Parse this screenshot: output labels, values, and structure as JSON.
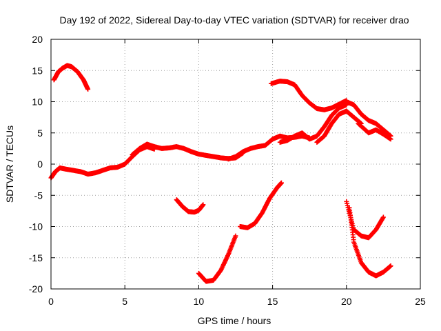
{
  "chart_data": {
    "type": "scatter",
    "title": "Day 192 of 2022, Sidereal Day-to-day VTEC variation (SDTVAR) for receiver drao",
    "xlabel": "GPS time / hours",
    "ylabel": "SDTVAR / TECUs",
    "xlim": [
      0,
      25
    ],
    "ylim": [
      -20,
      20
    ],
    "xticks": [
      0,
      5,
      10,
      15,
      20,
      25
    ],
    "yticks": [
      -20,
      -15,
      -10,
      -5,
      0,
      5,
      10,
      15,
      20
    ],
    "grid": true,
    "marker": "+",
    "color": "#ff0000",
    "series": [
      {
        "name": "arc-main-0-7",
        "x": [
          0.0,
          0.3,
          0.6,
          1.0,
          1.5,
          2.0,
          2.5,
          3.0,
          3.5,
          4.0,
          4.5,
          5.0,
          5.5,
          6.0,
          6.5,
          7.0
        ],
        "y": [
          -2.2,
          -1.2,
          -0.6,
          -0.8,
          -1.0,
          -1.2,
          -1.6,
          -1.4,
          -1.0,
          -0.6,
          -0.5,
          0.0,
          1.2,
          2.3,
          2.8,
          2.4
        ]
      },
      {
        "name": "arc-main-5-13",
        "x": [
          5.5,
          6.0,
          6.5,
          7.0,
          7.5,
          8.0,
          8.5,
          9.0,
          9.5,
          10.0,
          10.5,
          11.0,
          11.5,
          12.0,
          12.5,
          13.0
        ],
        "y": [
          1.5,
          2.5,
          3.2,
          2.8,
          2.5,
          2.6,
          2.8,
          2.5,
          2.0,
          1.6,
          1.4,
          1.2,
          1.0,
          0.9,
          1.0,
          1.8
        ]
      },
      {
        "name": "arc-main-12-17",
        "x": [
          12.0,
          12.5,
          13.0,
          13.5,
          14.0,
          14.5,
          15.0,
          15.5,
          16.0,
          16.5,
          17.0,
          17.5
        ],
        "y": [
          0.8,
          1.2,
          2.0,
          2.5,
          2.8,
          3.0,
          4.0,
          4.5,
          4.2,
          4.3,
          4.5,
          4.2
        ]
      },
      {
        "name": "arc-main-15-20",
        "x": [
          15.5,
          16.0,
          16.5,
          17.0,
          17.5,
          18.0,
          18.5,
          19.0,
          19.5,
          20.0
        ],
        "y": [
          3.5,
          3.8,
          4.5,
          5.0,
          4.0,
          4.5,
          6.0,
          7.8,
          9.0,
          9.5
        ]
      },
      {
        "name": "arc-main-18-21",
        "x": [
          18.0,
          18.5,
          19.0,
          19.5,
          20.0,
          20.5,
          21.0
        ],
        "y": [
          3.5,
          4.5,
          6.5,
          8.0,
          8.5,
          7.5,
          6.5
        ]
      },
      {
        "name": "arc-main-20-23",
        "x": [
          20.0,
          20.5,
          21.0,
          21.5,
          22.0,
          22.5,
          23.0
        ],
        "y": [
          10.0,
          9.5,
          8.0,
          7.0,
          6.5,
          5.5,
          4.5
        ]
      },
      {
        "name": "arc-main-21-23",
        "x": [
          20.8,
          21.5,
          22.0,
          22.5,
          23.0
        ],
        "y": [
          6.5,
          5.0,
          5.5,
          4.8,
          4.0
        ]
      },
      {
        "name": "arc-top-left",
        "x": [
          0.2,
          0.5,
          0.8,
          1.1,
          1.4,
          1.8,
          2.2,
          2.5
        ],
        "y": [
          13.5,
          14.8,
          15.4,
          15.8,
          15.6,
          14.8,
          13.5,
          12.0
        ]
      },
      {
        "name": "arc-top-right",
        "x": [
          14.9,
          15.5,
          16.0,
          16.5,
          17.0,
          17.5,
          18.0,
          18.5,
          19.0,
          19.5,
          20.0
        ],
        "y": [
          12.9,
          13.3,
          13.2,
          12.7,
          11.0,
          9.8,
          8.9,
          8.7,
          9.0,
          9.6,
          10.2
        ]
      },
      {
        "name": "arc-neg-9",
        "x": [
          8.5,
          8.9,
          9.3,
          9.7,
          10.0,
          10.3
        ],
        "y": [
          -5.7,
          -6.8,
          -7.6,
          -7.7,
          -7.4,
          -6.5
        ]
      },
      {
        "name": "arc-neg-10-12",
        "x": [
          10.0,
          10.5,
          11.0,
          11.5,
          12.0,
          12.5
        ],
        "y": [
          -17.5,
          -18.8,
          -18.6,
          -17.0,
          -14.5,
          -11.5
        ]
      },
      {
        "name": "arc-neg-13-15",
        "x": [
          12.8,
          13.3,
          13.8,
          14.3,
          14.8,
          15.3,
          15.6
        ],
        "y": [
          -10.0,
          -10.2,
          -9.5,
          -7.8,
          -5.5,
          -3.8,
          -3.0
        ]
      },
      {
        "name": "arc-neg-20-22a",
        "x": [
          20.0,
          20.5,
          21.0,
          21.5,
          22.0,
          22.5
        ],
        "y": [
          -6.0,
          -10.5,
          -11.5,
          -11.8,
          -10.5,
          -8.5
        ]
      },
      {
        "name": "arc-neg-20-23b",
        "x": [
          20.2,
          20.5,
          21.0,
          21.5,
          22.0,
          22.5,
          23.0
        ],
        "y": [
          -7.0,
          -12.5,
          -15.8,
          -17.3,
          -17.9,
          -17.3,
          -16.3
        ]
      }
    ]
  }
}
